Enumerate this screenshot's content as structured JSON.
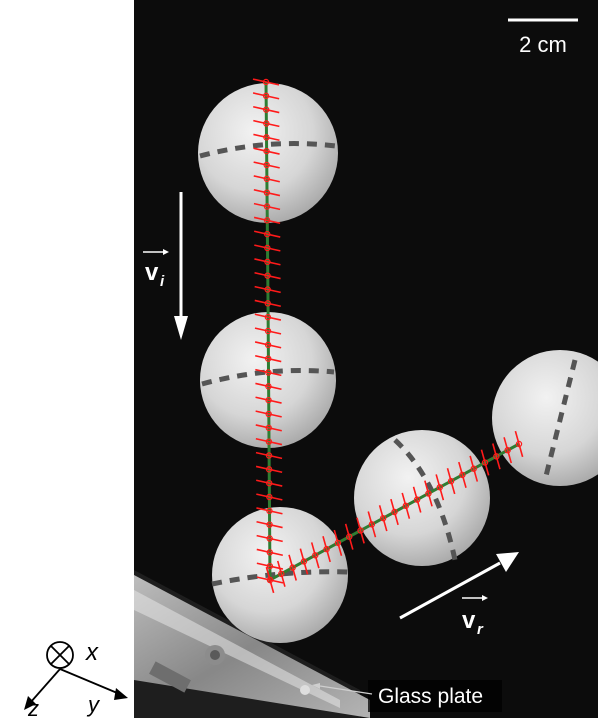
{
  "figure": {
    "scale_bar_label": "2 cm",
    "incident_velocity": {
      "symbol": "v",
      "subscript": "i"
    },
    "reflected_velocity": {
      "symbol": "v",
      "subscript": "r"
    },
    "glass_plate_label": "Glass plate",
    "axes": {
      "x": "x",
      "y": "y",
      "z": "z"
    }
  },
  "colors": {
    "background": "#0c0c0c",
    "ball": "#d9d9d9",
    "track_line": "#2e7d32",
    "tick_marks": "#ff1a1a",
    "arrows": "#ffffff",
    "plate": "#b3b3b3"
  }
}
